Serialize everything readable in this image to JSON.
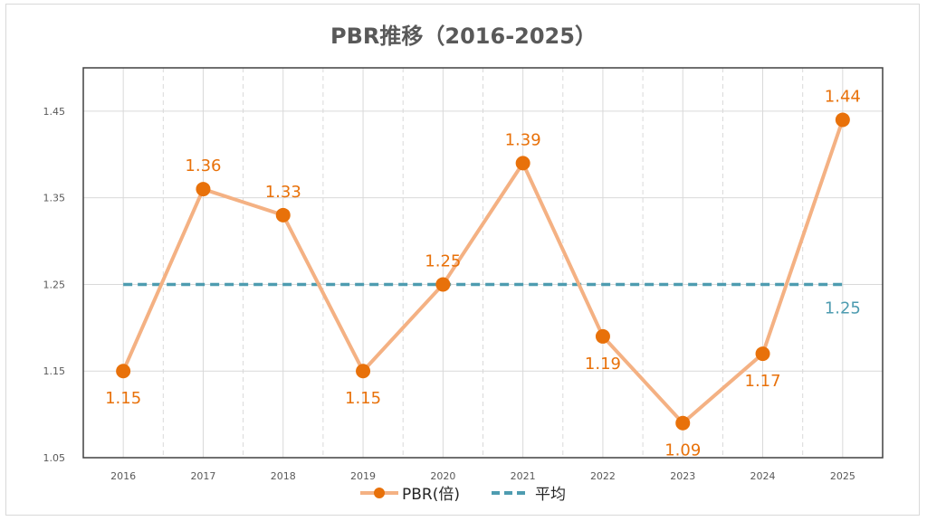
{
  "chart_data": {
    "type": "line",
    "title": "PBR推移（2016-2025）",
    "xlabel": "",
    "ylabel": "",
    "categories": [
      "2016",
      "2017",
      "2018",
      "2019",
      "2020",
      "2021",
      "2022",
      "2023",
      "2024",
      "2025"
    ],
    "ylim": [
      1.05,
      1.5
    ],
    "yticks": [
      "1.05",
      "1.15",
      "1.25",
      "1.35",
      "1.45"
    ],
    "series": [
      {
        "name": "PBR(倍)",
        "values": [
          1.15,
          1.36,
          1.33,
          1.15,
          1.25,
          1.39,
          1.19,
          1.09,
          1.17,
          1.44
        ],
        "labels": [
          "1.15",
          "1.36",
          "1.33",
          "1.15",
          "1.25",
          "1.39",
          "1.19",
          "1.09",
          "1.17",
          "1.44"
        ],
        "line_color": "#f4b183",
        "marker_color": "#e8710a"
      },
      {
        "name": "平均",
        "values": [
          1.25,
          1.25,
          1.25,
          1.25,
          1.25,
          1.25,
          1.25,
          1.25,
          1.25,
          1.25
        ],
        "end_label": "1.25",
        "color": "#4e9cb0",
        "style": "dashed"
      }
    ],
    "grid": true,
    "legend": "bottom"
  }
}
